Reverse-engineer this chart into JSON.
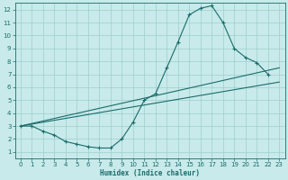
{
  "xlabel": "Humidex (Indice chaleur)",
  "bg_color": "#c8eaea",
  "grid_color": "#9ecece",
  "line_color": "#1a6b6b",
  "xlim": [
    -0.5,
    23.5
  ],
  "ylim": [
    0.5,
    12.5
  ],
  "yticks": [
    1,
    2,
    3,
    4,
    5,
    6,
    7,
    8,
    9,
    10,
    11,
    12
  ],
  "xticks": [
    0,
    1,
    2,
    3,
    4,
    5,
    6,
    7,
    8,
    9,
    10,
    11,
    12,
    13,
    14,
    15,
    16,
    17,
    18,
    19,
    20,
    21,
    22,
    23
  ],
  "curve1_x": [
    0,
    1,
    2,
    3,
    4,
    5,
    6,
    7,
    8,
    9,
    10,
    11,
    12,
    13,
    14,
    15,
    16,
    17,
    18,
    19,
    20,
    21,
    22
  ],
  "curve1_y": [
    3.0,
    3.0,
    2.6,
    2.3,
    1.8,
    1.6,
    1.4,
    1.3,
    1.3,
    2.0,
    3.3,
    5.0,
    5.5,
    7.5,
    9.5,
    11.6,
    12.1,
    12.3,
    11.0,
    9.0,
    8.3,
    7.9,
    7.0
  ],
  "curve2_x": [
    0,
    23
  ],
  "curve2_y": [
    3.0,
    6.4
  ],
  "curve3_x": [
    0,
    23
  ],
  "curve3_y": [
    3.0,
    7.5
  ],
  "xlabel_fontsize": 5.5,
  "tick_labelsize": 5.0
}
